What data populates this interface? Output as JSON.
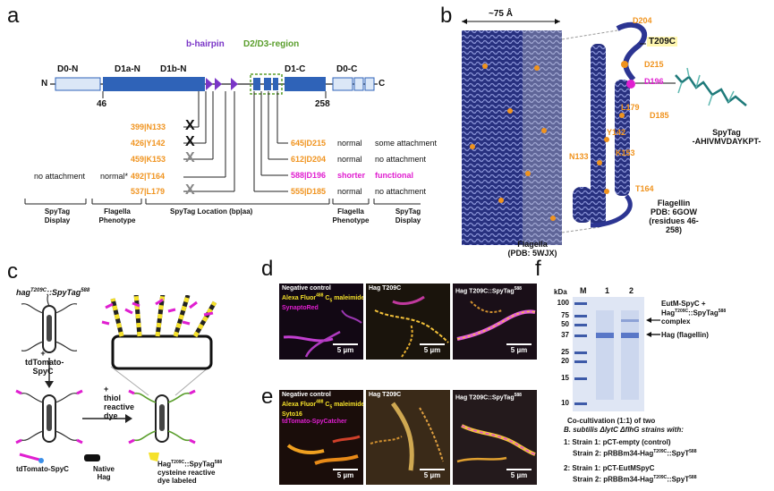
{
  "panels": {
    "a": "a",
    "b": "b",
    "c": "c",
    "d": "d",
    "e": "e",
    "f": "f"
  },
  "a": {
    "domains": {
      "d0n": "D0-N",
      "d1an": "D1a-N",
      "d1bn": "D1b-N",
      "d1c": "D1-C",
      "d0c": "D0-C"
    },
    "region_hairpin": "b-hairpin",
    "region_d2d3": "D2/D3-region",
    "n_term": "N",
    "c_term": "C",
    "pos46": "46",
    "pos258": "258",
    "sites": [
      {
        "label": "399|N133",
        "mark": "X"
      },
      {
        "label": "426|Y142",
        "mark": "X"
      },
      {
        "label": "459|K153",
        "mark": "X"
      },
      {
        "label": "492|T164",
        "left_display": "no attachment",
        "left_phenotype": "normal*"
      },
      {
        "label": "537|L179",
        "mark": "X"
      }
    ],
    "right_sites": [
      {
        "label": "645|D215",
        "phenotype": "normal",
        "display": "some attachment"
      },
      {
        "label": "612|D204",
        "phenotype": "normal",
        "display": "no attachment"
      },
      {
        "label": "588|D196",
        "phenotype": "shorter",
        "display": "functional"
      },
      {
        "label": "555|D185",
        "phenotype": "normal",
        "display": "no attachment"
      }
    ],
    "footer": {
      "spytag_display": "SpyTag\nDisplay",
      "flagella_phenotype": "Flagella\nPhenotype",
      "spytag_location": "SpyTag Location (bp|aa)",
      "flagella_phenotype_r": "Flagella\nPhenotype",
      "spytag_display_r": "SpyTag\nDisplay"
    }
  },
  "b": {
    "width_label": "~75 Å",
    "flagella_caption_1": "Flagella",
    "flagella_caption_2": "(PDB: 5WJX)",
    "flagellin_caption_1": "Flagellin",
    "flagellin_caption_2": "PDB: 6GOW",
    "flagellin_caption_3": "(residues 46-258)",
    "residues": [
      "D204",
      "D215",
      "D196",
      "L179",
      "D185",
      "Y142",
      "K153",
      "N133",
      "T164"
    ],
    "highlight": "T209C",
    "spytag_1": "SpyTag",
    "spytag_2": "-AHIVMVDAYKPT-"
  },
  "c": {
    "title_main": "hag",
    "title_sup": "T209C",
    "title_tail": "::SpyTag",
    "title_sup2": "588",
    "plus1": "+",
    "reagent1": "tdTomato-",
    "reagent1b": "SpyC",
    "plus2": "+",
    "reagent2": "thiol",
    "reagent2b": "reactive",
    "reagent2c": "dye",
    "legend_1": "tdTomato-SpyC",
    "legend_2a": "Native",
    "legend_2b": "Hag",
    "legend_3a": "Hag",
    "legend_3sup": "T209C",
    "legend_3b": "::SpyTag",
    "legend_3sup2": "588",
    "legend_3c": "cysteine reactive",
    "legend_3d": "dye labeled"
  },
  "d": {
    "p1_l1": "Negative control",
    "p1_l2": "Alexa Fluor",
    "p1_l2sup": "488",
    "p1_l2b": " C",
    "p1_l2sub": "5",
    "p1_l2c": " maleimide",
    "p1_l3": "SynaptoRed",
    "p2": "Hag T209C",
    "p3": "Hag T209C::SpyTag",
    "p3sup": "588",
    "scale": "5 µm"
  },
  "e": {
    "p1_l1": "Negative control",
    "p1_l2": "Alexa Fluor",
    "p1_l2sup": "488",
    "p1_l2b": " C",
    "p1_l2sub": "5",
    "p1_l2c": " maleimide",
    "p1_l3": "Syto16",
    "p1_l4": "tdTomato-SpyCatcher",
    "p2": "Hag T209C",
    "p3": "Hag T209C::SpyTag",
    "p3sup": "588",
    "scale": "5 µm"
  },
  "f": {
    "kda": "kDa",
    "lanes": [
      "M",
      "1",
      "2"
    ],
    "markers": [
      "100",
      "75",
      "50",
      "37",
      "25",
      "20",
      "15",
      "10"
    ],
    "band1a": "EutM-SpyC +",
    "band1b": "Hag",
    "band1sup": "T209C",
    "band1c": "::SpyTag",
    "band1sup2": "588",
    "band1d": "complex",
    "band2": "Hag (flagellin)",
    "cap1": "Co-cultivation (1:1) of  two",
    "cap2": "B. subtilis ΔlytC ΔflhG strains with:",
    "cap3": "1: Strain 1: pCT-empty (control)",
    "cap4a": "Strain 2: pRBBm34-Hag",
    "cap4sup": "T209C",
    "cap4b": "::SpyT",
    "cap4sup2": "588",
    "cap5": "2: Strain 1: pCT-EutMSpyC",
    "cap6a": "Strain 2: pRBBm34-Hag",
    "cap6sup": "T209C",
    "cap6b": "::SpyT",
    "cap6sup2": "588"
  },
  "colors": {
    "domain_blue": "#2f63b8",
    "domain_light": "#dbe7f7",
    "orange": "#f0931e",
    "magenta": "#e01fd0",
    "purple": "#7a35c7",
    "green": "#5a9e2c"
  }
}
